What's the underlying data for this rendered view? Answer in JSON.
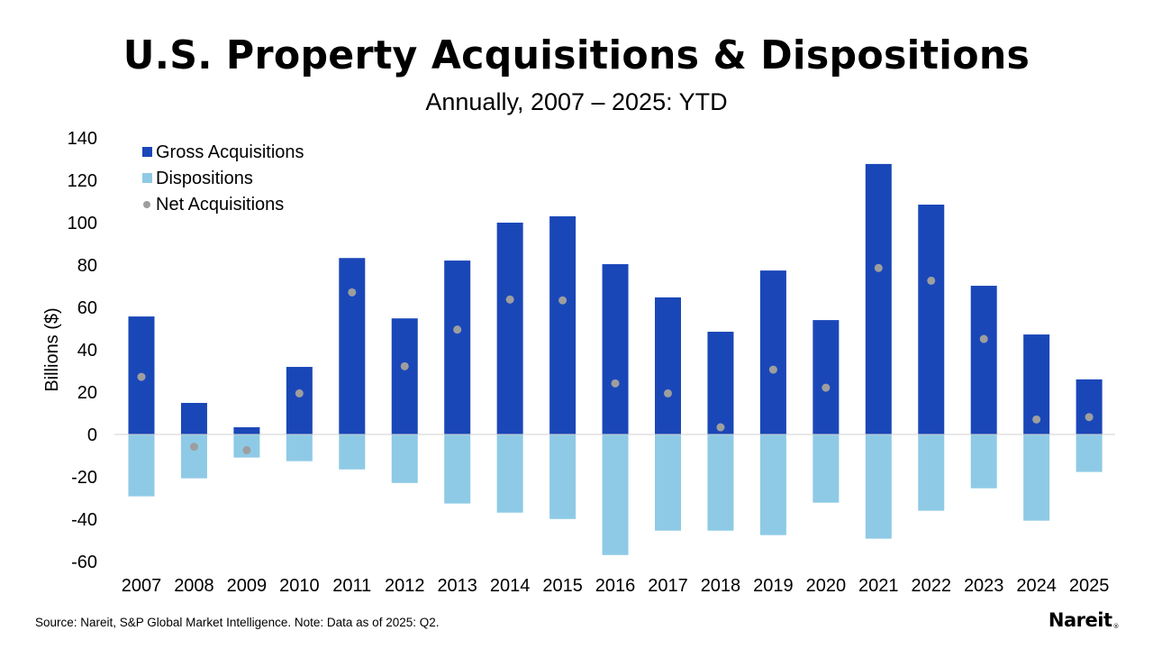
{
  "header": {
    "title": "U.S. Property Acquisitions & Dispositions",
    "subtitle": "Annually, 2007 – 2025: YTD"
  },
  "footer": {
    "source": "Source: Nareit, S&P Global Market Intelligence. Note: Data as of 2025: Q2.",
    "logo_text": "Nareit",
    "logo_mark": "®"
  },
  "colors": {
    "gross": "#1a47b8",
    "dispositions": "#8ecae6",
    "net": "#9e9e9e",
    "zero_line": "#d0d0d0"
  },
  "chart_data": {
    "type": "bar",
    "title": "U.S. Property Acquisitions & Dispositions",
    "subtitle": "Annually, 2007 – 2025: YTD",
    "xlabel": "",
    "ylabel": "Billions ($)",
    "ylim": [
      -60,
      140
    ],
    "yticks": [
      140,
      120,
      100,
      80,
      60,
      40,
      20,
      0,
      -20,
      -40,
      -60
    ],
    "grid": false,
    "legend_position": "top-left",
    "categories": [
      "2007",
      "2008",
      "2009",
      "2010",
      "2011",
      "2012",
      "2013",
      "2014",
      "2015",
      "2016",
      "2017",
      "2018",
      "2019",
      "2020",
      "2021",
      "2022",
      "2023",
      "2024",
      "2025"
    ],
    "series": [
      {
        "name": "Gross Acquisitions",
        "kind": "bar",
        "values": [
          55.7,
          14.9,
          3.4,
          31.9,
          83.3,
          54.8,
          82.1,
          100.0,
          103.0,
          80.4,
          64.7,
          48.5,
          77.4,
          54.0,
          127.7,
          108.5,
          70.2,
          47.2,
          26.0
        ]
      },
      {
        "name": "Dispositions",
        "kind": "bar",
        "values": [
          -29.2,
          -20.7,
          -10.9,
          -12.6,
          -16.5,
          -22.9,
          -32.6,
          -36.9,
          -39.9,
          -56.9,
          -45.4,
          -45.4,
          -47.5,
          -32.2,
          -49.2,
          -36.0,
          -25.4,
          -40.7,
          -17.7
        ]
      },
      {
        "name": "Net Acquisitions",
        "kind": "scatter",
        "values": [
          27.2,
          -5.8,
          -7.4,
          19.4,
          67.1,
          32.2,
          49.5,
          63.7,
          63.3,
          24.1,
          19.4,
          3.4,
          30.6,
          22.1,
          78.6,
          72.6,
          45.1,
          7.1,
          8.2
        ]
      }
    ]
  }
}
